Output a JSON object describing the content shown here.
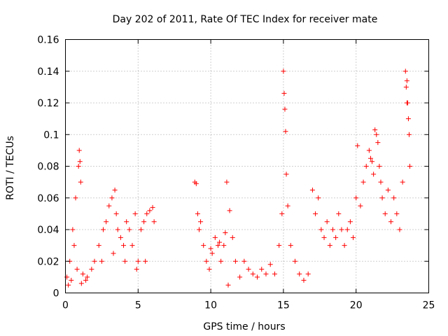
{
  "chart_data": {
    "type": "scatter",
    "title": "Day 202 of 2011, Rate Of TEC Index for receiver mate",
    "xlabel": "GPS time / hours",
    "ylabel": "ROTI / TECUs",
    "xlim": [
      0,
      25
    ],
    "ylim": [
      0,
      0.16
    ],
    "xticks": [
      0,
      5,
      10,
      15,
      20,
      25
    ],
    "yticks": [
      0,
      0.02,
      0.04,
      0.06,
      0.08,
      0.1,
      0.12,
      0.14,
      0.16
    ],
    "xtick_labels": [
      "0",
      "5",
      "10",
      "15",
      "20",
      "25"
    ],
    "ytick_labels": [
      "0",
      "0.02",
      "0.04",
      "0.06",
      "0.08",
      "0.1",
      "0.12",
      "0.14",
      "0.16"
    ],
    "grid": true,
    "marker": "+",
    "marker_color": "#ff0000",
    "series": [
      {
        "x": [
          0.1,
          0.3,
          0.5,
          0.7,
          0.9,
          0.95,
          1.0,
          1.05,
          0.6,
          0.8,
          1.2,
          1.5,
          1.8,
          2.0,
          2.3,
          2.6,
          2.8,
          3.0,
          3.2,
          3.4,
          3.5,
          3.6,
          3.8,
          4.0,
          4.2,
          4.4,
          4.6,
          4.8,
          5.0,
          5.2,
          5.4,
          5.6,
          5.8,
          6.0,
          6.1,
          0.2,
          0.4,
          1.1,
          1.4,
          2.5,
          3.3,
          4.1,
          4.9,
          5.5
        ],
        "y": [
          0.01,
          0.02,
          0.04,
          0.06,
          0.08,
          0.09,
          0.083,
          0.07,
          0.03,
          0.015,
          0.012,
          0.01,
          0.015,
          0.02,
          0.03,
          0.04,
          0.045,
          0.055,
          0.06,
          0.065,
          0.05,
          0.04,
          0.035,
          0.03,
          0.045,
          0.04,
          0.03,
          0.05,
          0.02,
          0.04,
          0.045,
          0.05,
          0.052,
          0.054,
          0.045,
          0.005,
          0.008,
          0.006,
          0.008,
          0.02,
          0.025,
          0.02,
          0.015,
          0.02
        ]
      },
      {
        "x": [
          8.9,
          9.0,
          9.1,
          9.3,
          9.5,
          9.7,
          9.9,
          10.1,
          10.3,
          10.5,
          10.7,
          10.9,
          11.1,
          11.3,
          11.5,
          11.7,
          12.0,
          12.3,
          12.6,
          12.9,
          13.2,
          13.5,
          13.8,
          14.1,
          14.4,
          14.7,
          14.9,
          15.0,
          15.05,
          15.1,
          15.15,
          15.2,
          15.3,
          15.5,
          15.8,
          16.1,
          16.4,
          16.7,
          9.2,
          10.0,
          10.6,
          11.0,
          11.2
        ],
        "y": [
          0.07,
          0.069,
          0.05,
          0.045,
          0.03,
          0.02,
          0.015,
          0.025,
          0.035,
          0.03,
          0.02,
          0.03,
          0.07,
          0.052,
          0.035,
          0.02,
          0.01,
          0.02,
          0.015,
          0.012,
          0.01,
          0.015,
          0.012,
          0.018,
          0.012,
          0.03,
          0.05,
          0.14,
          0.126,
          0.116,
          0.102,
          0.075,
          0.055,
          0.03,
          0.02,
          0.012,
          0.008,
          0.012,
          0.04,
          0.028,
          0.032,
          0.038,
          0.005
        ]
      },
      {
        "x": [
          17.0,
          17.2,
          17.4,
          17.6,
          17.8,
          18.0,
          18.2,
          18.4,
          18.6,
          18.8,
          19.0,
          19.2,
          19.4,
          19.6,
          19.8,
          20.0,
          20.1,
          20.3,
          20.5,
          20.7,
          20.9,
          21.0,
          21.1,
          21.2,
          21.3,
          21.4,
          21.5,
          21.6,
          21.7,
          21.8,
          22.0,
          22.2,
          22.4,
          22.6,
          22.8,
          23.0,
          23.2,
          23.4,
          23.5,
          23.55,
          23.6,
          23.65,
          23.7,
          23.45,
          23.5
        ],
        "y": [
          0.065,
          0.05,
          0.06,
          0.04,
          0.035,
          0.045,
          0.03,
          0.04,
          0.035,
          0.05,
          0.04,
          0.03,
          0.04,
          0.045,
          0.035,
          0.06,
          0.093,
          0.055,
          0.07,
          0.08,
          0.09,
          0.085,
          0.083,
          0.075,
          0.103,
          0.1,
          0.095,
          0.08,
          0.07,
          0.06,
          0.05,
          0.065,
          0.045,
          0.06,
          0.05,
          0.04,
          0.07,
          0.14,
          0.134,
          0.12,
          0.11,
          0.1,
          0.08,
          0.13,
          0.12
        ]
      }
    ]
  }
}
